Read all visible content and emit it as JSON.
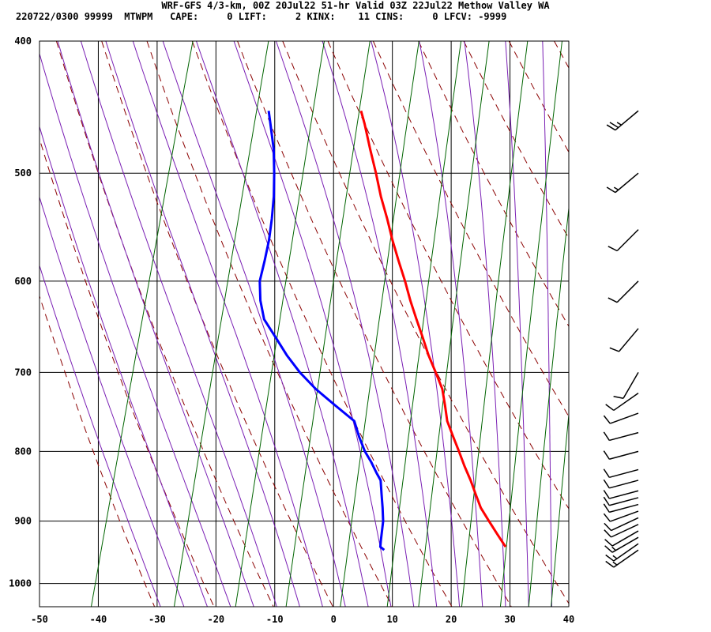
{
  "header": {
    "title": "WRF-GFS 4/3-km, 00Z 20Jul22 51-hr Valid 03Z 22Jul22 Methow Valley WA",
    "stats": "220722/0300 99999  MTWPM   CAPE:     0 LIFT:     2 KINX:    11 CINS:     0 LFCV: -9999"
  },
  "colors": {
    "temperature": "#ff0000",
    "dewpoint": "#0000ff",
    "dry_adiabat": "#8b0000",
    "moist_adiabat": "#7a1fb4",
    "mixing_ratio": "#006400",
    "grid": "#000000",
    "barbs": "#000000"
  },
  "chart_data": {
    "type": "line",
    "xlabel": "",
    "ylabel": "",
    "xlim": [
      -50,
      40
    ],
    "ylim": [
      1040,
      400
    ],
    "y_scale": "log",
    "x_ticks": [
      "-50",
      "-40",
      "-30",
      "-20",
      "-10",
      "0",
      "10",
      "20",
      "30",
      "40"
    ],
    "y_ticks": [
      "400",
      "500",
      "600",
      "700",
      "800",
      "900",
      "1000"
    ],
    "grid": true,
    "series": [
      {
        "key": "temperature",
        "pressure": [
          940,
          920,
          900,
          880,
          860,
          840,
          820,
          800,
          780,
          760,
          740,
          720,
          700,
          680,
          660,
          640,
          620,
          600,
          580,
          560,
          540,
          520,
          500,
          480,
          460,
          450
        ],
        "values": [
          26.5,
          24.5,
          22.5,
          20.5,
          19.0,
          17.5,
          15.8,
          14.2,
          12.5,
          10.8,
          9.7,
          8.5,
          6.6,
          4.6,
          2.8,
          0.9,
          -1.0,
          -2.8,
          -4.8,
          -6.8,
          -8.7,
          -10.8,
          -12.7,
          -14.8,
          -16.9,
          -18.1
        ]
      },
      {
        "key": "dewpoint",
        "pressure": [
          945,
          940,
          930,
          900,
          880,
          860,
          840,
          830,
          815,
          800,
          780,
          760,
          740,
          720,
          700,
          680,
          660,
          640,
          620,
          600,
          580,
          560,
          540,
          520,
          500,
          480,
          460,
          450
        ],
        "values": [
          6.0,
          5.2,
          5.0,
          4.5,
          3.8,
          3.0,
          2.2,
          1.2,
          -0.2,
          -1.8,
          -3.5,
          -5.0,
          -9.0,
          -13.0,
          -16.5,
          -19.5,
          -22.2,
          -25.0,
          -26.5,
          -27.5,
          -27.6,
          -27.8,
          -28.3,
          -29.0,
          -30.0,
          -31.2,
          -32.9,
          -33.8
        ]
      }
    ],
    "wind_barbs": [
      {
        "p": 945,
        "dir": 235,
        "spd": 15
      },
      {
        "p": 935,
        "dir": 235,
        "spd": 15
      },
      {
        "p": 925,
        "dir": 240,
        "spd": 15
      },
      {
        "p": 915,
        "dir": 240,
        "spd": 10
      },
      {
        "p": 905,
        "dir": 245,
        "spd": 10
      },
      {
        "p": 895,
        "dir": 245,
        "spd": 10
      },
      {
        "p": 885,
        "dir": 250,
        "spd": 10
      },
      {
        "p": 875,
        "dir": 255,
        "spd": 10
      },
      {
        "p": 865,
        "dir": 255,
        "spd": 10
      },
      {
        "p": 855,
        "dir": 255,
        "spd": 10
      },
      {
        "p": 840,
        "dir": 255,
        "spd": 10
      },
      {
        "p": 825,
        "dir": 255,
        "spd": 10
      },
      {
        "p": 800,
        "dir": 255,
        "spd": 10
      },
      {
        "p": 775,
        "dir": 255,
        "spd": 10
      },
      {
        "p": 750,
        "dir": 250,
        "spd": 10
      },
      {
        "p": 725,
        "dir": 235,
        "spd": 10
      },
      {
        "p": 700,
        "dir": 210,
        "spd": 10
      },
      {
        "p": 650,
        "dir": 220,
        "spd": 10
      },
      {
        "p": 600,
        "dir": 225,
        "spd": 10
      },
      {
        "p": 550,
        "dir": 225,
        "spd": 10
      },
      {
        "p": 500,
        "dir": 230,
        "spd": 15
      },
      {
        "p": 450,
        "dir": 230,
        "spd": 25
      }
    ]
  }
}
